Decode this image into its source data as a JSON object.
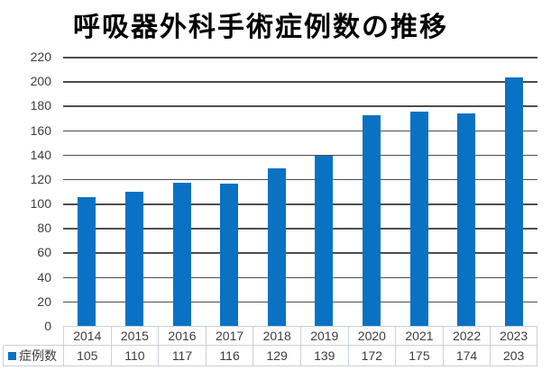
{
  "title": "呼吸器外科手術症例数の推移",
  "legend": {
    "label": "症例数"
  },
  "colors": {
    "bar": "#0a72c2",
    "gridline": "#4d4d4d",
    "table_border": "#c8d1da",
    "axis_text": "#3d3d3d",
    "title_text": "#000000",
    "background": "#ffffff"
  },
  "chart_data": {
    "type": "bar",
    "title": "呼吸器外科手術症例数の推移",
    "categories": [
      "2014",
      "2015",
      "2016",
      "2017",
      "2018",
      "2019",
      "2020",
      "2021",
      "2022",
      "2023"
    ],
    "series": [
      {
        "name": "症例数",
        "values": [
          105,
          110,
          117,
          116,
          129,
          139,
          172,
          175,
          174,
          203
        ]
      }
    ],
    "xlabel": "",
    "ylabel": "",
    "ylim": [
      0,
      220
    ],
    "yticks": [
      0,
      20,
      40,
      60,
      80,
      100,
      120,
      140,
      160,
      180,
      200,
      220
    ],
    "grid": true,
    "legend_position": "data-table-left",
    "data_table_shown": true
  }
}
